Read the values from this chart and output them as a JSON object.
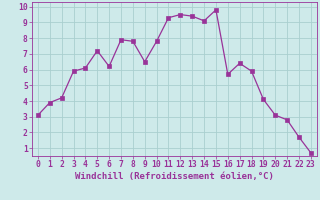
{
  "x": [
    0,
    1,
    2,
    3,
    4,
    5,
    6,
    7,
    8,
    9,
    10,
    11,
    12,
    13,
    14,
    15,
    16,
    17,
    18,
    19,
    20,
    21,
    22,
    23
  ],
  "y": [
    3.1,
    3.9,
    4.2,
    5.9,
    6.1,
    7.2,
    6.2,
    7.9,
    7.8,
    6.5,
    7.8,
    9.3,
    9.5,
    9.4,
    9.1,
    9.8,
    5.7,
    6.4,
    5.9,
    4.1,
    3.1,
    2.8,
    1.7,
    0.7
  ],
  "line_color": "#993399",
  "marker": "s",
  "marker_size": 2.2,
  "bg_color": "#ceeaea",
  "grid_color": "#aacfcf",
  "xlabel": "Windchill (Refroidissement éolien,°C)",
  "xlabel_color": "#993399",
  "tick_color": "#993399",
  "spine_color": "#993399",
  "xlim_min": -0.5,
  "xlim_max": 23.5,
  "ylim_min": 0.5,
  "ylim_max": 10.3,
  "yticks": [
    1,
    2,
    3,
    4,
    5,
    6,
    7,
    8,
    9,
    10
  ],
  "xticks": [
    0,
    1,
    2,
    3,
    4,
    5,
    6,
    7,
    8,
    9,
    10,
    11,
    12,
    13,
    14,
    15,
    16,
    17,
    18,
    19,
    20,
    21,
    22,
    23
  ],
  "xlabel_fontsize": 6.5,
  "tick_fontsize": 5.8,
  "line_width": 0.9
}
